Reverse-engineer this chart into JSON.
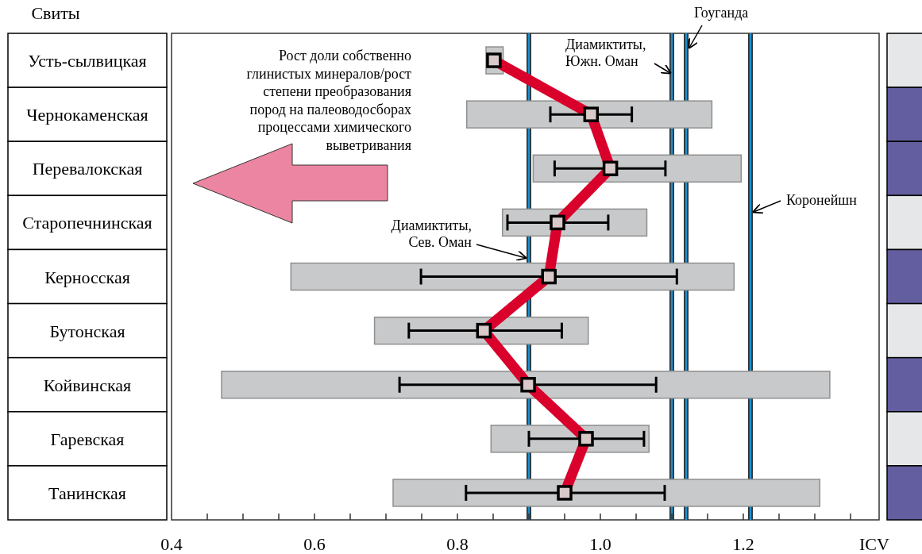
{
  "chart_data": {
    "type": "bar",
    "orientation": "horizontal",
    "ylabel": "Свиты",
    "xlabel": "ICV",
    "categories": [
      "Усть-сылвицкая",
      "Чернокаменская",
      "Перевалокская",
      "Старопечнинская",
      "Керносская",
      "Бутонская",
      "Койвинская",
      "Гаревская",
      "Танинская"
    ],
    "series": [
      {
        "color": "#c8c9ca",
        "base": [
          0.84,
          0.813,
          0.906,
          0.863,
          0.567,
          0.684,
          0.47,
          0.847,
          0.71
        ],
        "values": [
          0.024,
          0.343,
          0.291,
          0.202,
          0.62,
          0.299,
          0.851,
          0.221,
          0.597
        ]
      },
      {
        "type": "line",
        "color": "#d9002b",
        "values": [
          0.851,
          0.987,
          1.014,
          0.94,
          0.928,
          0.837,
          0.899,
          0.98,
          0.95
        ],
        "errors": [
          null,
          [
            0.93,
            1.044
          ],
          [
            0.936,
            1.091
          ],
          [
            0.87,
            1.011
          ],
          [
            0.749,
            1.107
          ],
          [
            0.732,
            0.946
          ],
          [
            0.719,
            1.078
          ],
          [
            0.9,
            1.061
          ],
          [
            0.812,
            1.09
          ]
        ]
      }
    ],
    "xlim": [
      0.4,
      1.39
    ],
    "xticks": [
      0.4,
      {
        "value": 0.45,
        "label": null
      },
      {
        "value": 0.5,
        "label": null
      },
      {
        "value": 0.55,
        "label": null
      },
      {
        "value": 0.6,
        "label": "0.6"
      },
      {
        "value": 0.65,
        "label": null
      },
      {
        "value": 0.7,
        "label": null
      },
      {
        "value": 0.75,
        "label": null
      },
      {
        "value": 0.8,
        "label": "0.8"
      },
      {
        "value": 0.85,
        "label": null
      },
      {
        "value": 0.9,
        "label": null
      },
      {
        "value": 0.95,
        "label": null
      },
      {
        "value": 1.0,
        "label": "1.0"
      },
      {
        "value": 1.05,
        "label": null
      },
      {
        "value": 1.1,
        "label": null
      },
      {
        "value": 1.15,
        "label": null
      },
      {
        "value": 1.2,
        "label": "1.2"
      },
      {
        "value": 1.25,
        "label": null
      },
      {
        "value": 1.3,
        "label": null
      },
      {
        "value": 1.35,
        "label": null
      }
    ],
    "ref_lines": [
      {
        "axis": "x",
        "value": 0.9,
        "label": "Диамиктиты,\nСев. Оман",
        "color": "#1a8fd0"
      },
      {
        "axis": "x",
        "value": 1.1,
        "label": "Диамиктиты,\nЮжн. Оман",
        "color": "#1a8fd0"
      },
      {
        "axis": "x",
        "value": 1.12,
        "label": "Гоуганда",
        "color": "#1a8fd0"
      },
      {
        "axis": "x",
        "value": 1.21,
        "label": "Коронейшн",
        "color": "#1a8fd0"
      }
    ],
    "annotations": [
      "Рост доли собственно\nглинистых минералов/рост\nстепени преобразования\nпород на палеоводосборах\nпроцессами химического\nвыветривания"
    ],
    "marker": "square"
  }
}
